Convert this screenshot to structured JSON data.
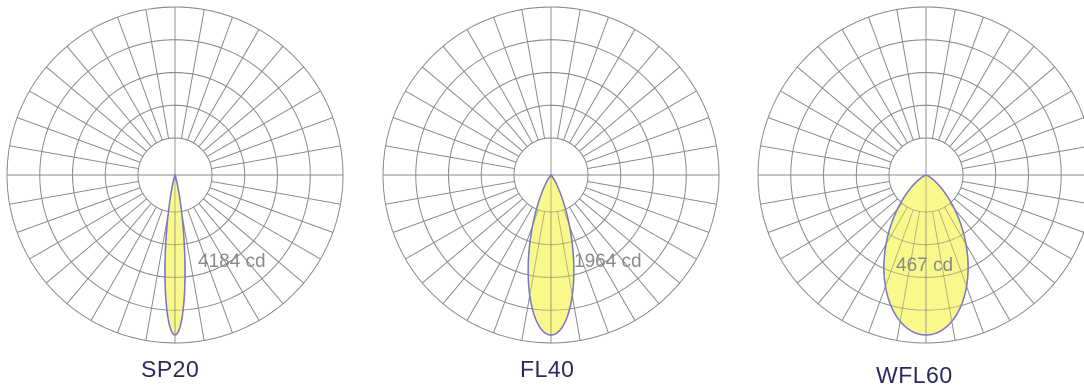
{
  "chart_data": [
    {
      "type": "polar",
      "title": "SP20",
      "peak_intensity": 4184,
      "unit": "cd",
      "peak_label": "4184 cd",
      "beam_half_angle_deg": 7
    },
    {
      "type": "polar",
      "title": "FL40",
      "peak_intensity": 1964,
      "unit": "cd",
      "peak_label": "1964 cd",
      "beam_half_angle_deg": 16
    },
    {
      "type": "polar",
      "title": "WFL60",
      "peak_intensity": 467,
      "unit": "cd",
      "peak_label": "467 cd",
      "beam_half_angle_deg": 30
    }
  ],
  "colors": {
    "beam_fill": "#f8f877",
    "beam_outline": "#7a78c8",
    "grid": "#8a8a8a",
    "label": "#2b2a5a"
  }
}
